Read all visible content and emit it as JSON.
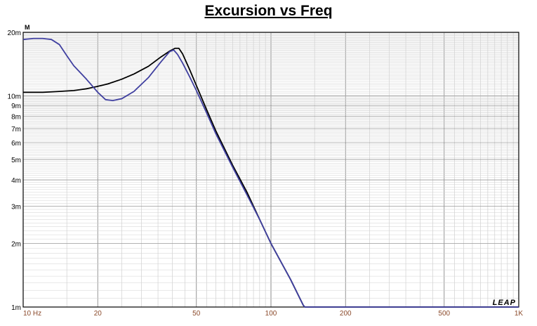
{
  "chart_data": {
    "type": "line",
    "title": "Excursion vs Freq",
    "y_unit_label": "M",
    "brand_label": "LEAP",
    "x_scale": "log",
    "y_scale": "log",
    "xlim": [
      10,
      1000
    ],
    "ylim": [
      0.001,
      0.02
    ],
    "grid": true,
    "x_tick_labels": [
      {
        "value": 10,
        "label": "10  Hz"
      },
      {
        "value": 20,
        "label": "20"
      },
      {
        "value": 50,
        "label": "50"
      },
      {
        "value": 100,
        "label": "100"
      },
      {
        "value": 200,
        "label": "200"
      },
      {
        "value": 500,
        "label": "500"
      },
      {
        "value": 1000,
        "label": "1K"
      }
    ],
    "y_tick_labels": [
      {
        "value": 0.02,
        "label": "20m"
      },
      {
        "value": 0.01,
        "label": "10m"
      },
      {
        "value": 0.009,
        "label": "9m"
      },
      {
        "value": 0.008,
        "label": "8m"
      },
      {
        "value": 0.007,
        "label": "7m"
      },
      {
        "value": 0.006,
        "label": "6m"
      },
      {
        "value": 0.005,
        "label": "5m"
      },
      {
        "value": 0.004,
        "label": "4m"
      },
      {
        "value": 0.003,
        "label": "3m"
      },
      {
        "value": 0.002,
        "label": "2m"
      },
      {
        "value": 0.001,
        "label": "1m"
      }
    ],
    "series": [
      {
        "color": "#000000",
        "points": [
          [
            10,
            0.0104
          ],
          [
            12,
            0.0104
          ],
          [
            14,
            0.0105
          ],
          [
            16,
            0.0106
          ],
          [
            18,
            0.0108
          ],
          [
            20,
            0.0111
          ],
          [
            22,
            0.0114
          ],
          [
            25,
            0.012
          ],
          [
            28,
            0.0127
          ],
          [
            32,
            0.0138
          ],
          [
            36,
            0.0153
          ],
          [
            39,
            0.0163
          ],
          [
            41,
            0.0168
          ],
          [
            42.5,
            0.0168
          ],
          [
            44,
            0.0158
          ],
          [
            47,
            0.0133
          ],
          [
            50,
            0.0112
          ],
          [
            55,
            0.0086
          ],
          [
            60,
            0.0068
          ],
          [
            70,
            0.0047
          ],
          [
            80,
            0.0035
          ],
          [
            90,
            0.0026
          ],
          [
            100,
            0.002
          ],
          [
            120,
            0.00135
          ],
          [
            135,
            0.00102
          ],
          [
            137,
            0.001
          ],
          [
            1000,
            0.001
          ]
        ]
      },
      {
        "color": "#4040a0",
        "points": [
          [
            10,
            0.0185
          ],
          [
            11,
            0.0187
          ],
          [
            12,
            0.0187
          ],
          [
            13,
            0.0185
          ],
          [
            14,
            0.0175
          ],
          [
            15,
            0.0155
          ],
          [
            16,
            0.0139
          ],
          [
            18,
            0.012
          ],
          [
            20,
            0.0104
          ],
          [
            21.5,
            0.0096
          ],
          [
            23,
            0.0095
          ],
          [
            25,
            0.0097
          ],
          [
            28,
            0.0105
          ],
          [
            32,
            0.0122
          ],
          [
            36,
            0.0145
          ],
          [
            39,
            0.0162
          ],
          [
            40.5,
            0.0165
          ],
          [
            42,
            0.0157
          ],
          [
            44,
            0.0143
          ],
          [
            47,
            0.0123
          ],
          [
            50,
            0.0106
          ],
          [
            55,
            0.0083
          ],
          [
            60,
            0.0066
          ],
          [
            70,
            0.0046
          ],
          [
            80,
            0.0034
          ],
          [
            90,
            0.0026
          ],
          [
            100,
            0.002
          ],
          [
            120,
            0.00135
          ],
          [
            135,
            0.00102
          ],
          [
            137,
            0.001
          ],
          [
            1000,
            0.001
          ]
        ]
      }
    ]
  }
}
